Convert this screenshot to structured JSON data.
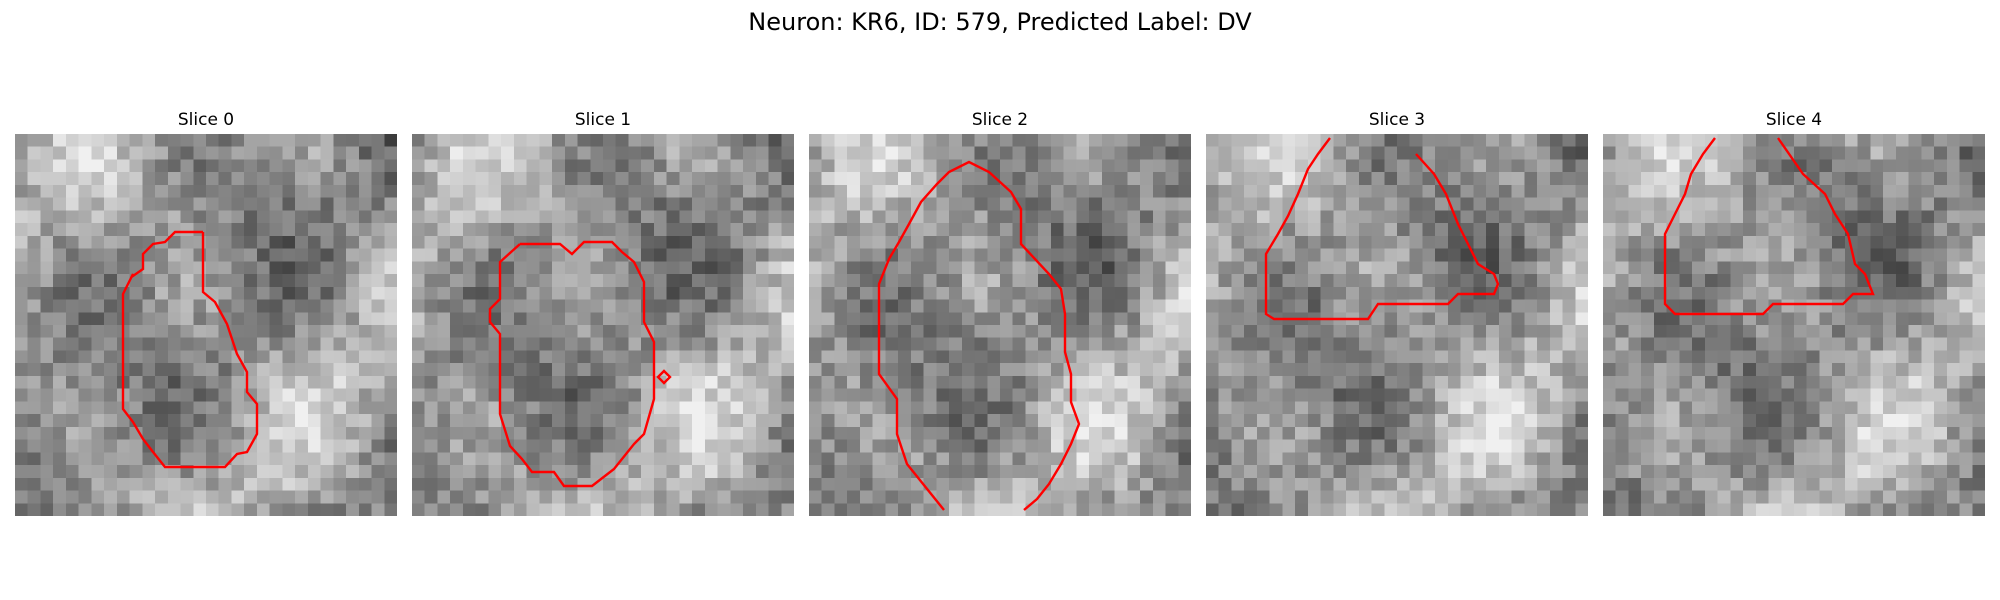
{
  "figure": {
    "title": "Neuron: KR6, ID: 579, Predicted Label: DV",
    "contour_color": "#ff0000",
    "colormap": "gray",
    "grid_size": 30
  },
  "slices": [
    {
      "label": "Slice 0"
    },
    {
      "label": "Slice 1"
    },
    {
      "label": "Slice 2"
    },
    {
      "label": "Slice 3"
    },
    {
      "label": "Slice 4"
    }
  ]
}
